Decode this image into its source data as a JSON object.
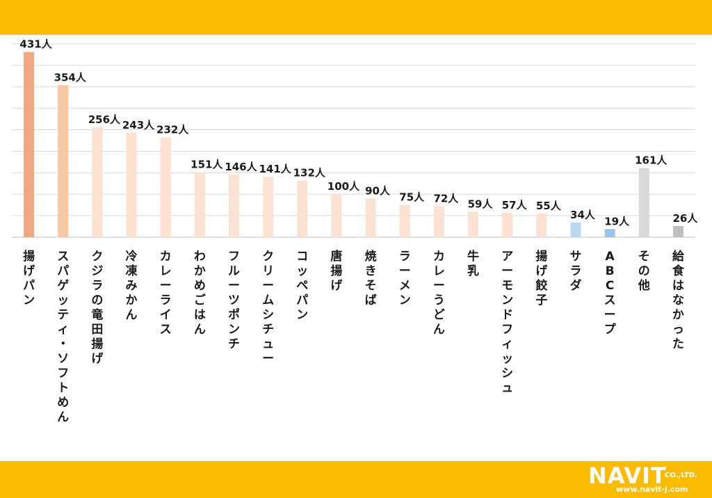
{
  "chart_data": {
    "type": "bar",
    "categories": [
      "揚げパン",
      "スパゲッティ・ソフトめん",
      "クジラの竜田揚げ",
      "冷凍みかん",
      "カレーライス",
      "わかめごはん",
      "フルーツポンチ",
      "クリームシチュー",
      "コッペパン",
      "唐揚げ",
      "焼きそば",
      "ラーメン",
      "カレーうどん",
      "牛乳",
      "アーモンドフィッシュ",
      "揚げ餃子",
      "サラダ",
      "ABCスープ",
      "その他",
      "給食はなかった"
    ],
    "values": [
      431,
      354,
      256,
      243,
      232,
      151,
      146,
      141,
      132,
      100,
      90,
      75,
      72,
      59,
      57,
      55,
      34,
      19,
      161,
      26
    ],
    "value_labels": [
      "431人",
      "354人",
      "256人",
      "243人",
      "232人",
      "151人",
      "146人",
      "141人",
      "132人",
      "100人",
      "90人",
      "75人",
      "72人",
      "59人",
      "57人",
      "55人",
      "34人",
      "19人",
      "161人",
      "26人"
    ],
    "colors": [
      "#eea97e",
      "#f6c6a5",
      "#fbe2d2",
      "#fbe2d2",
      "#fbe2d2",
      "#fbe2d2",
      "#fbe2d2",
      "#fbe2d2",
      "#fbe2d2",
      "#fbe2d2",
      "#fbe2d2",
      "#fbe2d2",
      "#fbe2d2",
      "#fbe2d2",
      "#fbe2d2",
      "#fbe2d2",
      "#bdd7ee",
      "#9dc3e6",
      "#d9d9d9",
      "#bfbfbf"
    ],
    "ylim": [
      0,
      450
    ],
    "gridlines": true,
    "legend": false
  },
  "brand": {
    "logo_text": "NAVIT",
    "company_suffix": "CO.,LTD.",
    "url": "www.navit-j.com",
    "band_color": "#fbbb00"
  }
}
